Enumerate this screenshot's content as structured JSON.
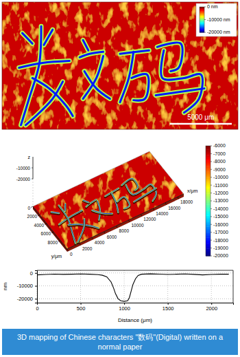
{
  "chart_data": [
    {
      "type": "heatmap",
      "xlim": [
        0,
        19000
      ],
      "ylim": [
        0,
        10000
      ],
      "tick_labels": false,
      "background": -1500,
      "stroke_edge": -9000,
      "stroke_center": -17000,
      "strokes": [
        {
          "x": [
            1630,
            2440
          ],
          "y": [
            2440,
            3260
          ]
        },
        {
          "x": [
            4070,
            3370
          ],
          "y": [
            2170,
            3370
          ]
        },
        {
          "x": [
            1360,
            3260,
            5430
          ],
          "y": [
            5160,
            4780,
            4620
          ]
        },
        {
          "x": [
            3150,
            2990,
            2170,
            1520
          ],
          "y": [
            1900,
            4890,
            7600,
            9670
          ]
        },
        {
          "x": [
            2440,
            3800,
            5160,
            5700
          ],
          "y": [
            5970,
            6790,
            8150,
            8960
          ]
        },
        {
          "x": [
            4890,
            4070,
            2720,
            1900
          ],
          "y": [
            6250,
            7600,
            8960,
            9670
          ]
        },
        {
          "x": [
            6250,
            7060,
            8150
          ],
          "y": [
            4340,
            4070,
            3910
          ]
        },
        {
          "x": [
            6520,
            6950
          ],
          "y": [
            2990,
            3800
          ]
        },
        {
          "x": [
            8150,
            7600,
            6520
          ],
          "y": [
            4240,
            5970,
            7600
          ]
        },
        {
          "x": [
            6630,
            7600,
            8690
          ],
          "y": [
            5430,
            6790,
            7600
          ]
        },
        {
          "x": [
            9500,
            10860,
            11840
          ],
          "y": [
            4070,
            3910,
            3800
          ]
        },
        {
          "x": [
            10590,
            10210,
            9500
          ],
          "y": [
            3910,
            5970,
            7870
          ]
        },
        {
          "x": [
            10430,
            11680,
            11510,
            10590
          ],
          "y": [
            5970,
            5700,
            7600,
            7710
          ]
        },
        {
          "x": [
            12490,
            14390,
            14230,
            13580
          ],
          "y": [
            3530,
            3260,
            5160,
            5430
          ]
        },
        {
          "x": [
            13030,
            12920,
            14660,
            16020,
            15860,
            14660
          ],
          "y": [
            3800,
            5970,
            5970,
            5700,
            7600,
            8690
          ]
        },
        {
          "x": [
            12380,
            16290
          ],
          "y": [
            7330,
            6790
          ]
        }
      ],
      "colorbar": {
        "range": [
          -20000,
          0
        ],
        "ticks": [
          {
            "value": 0,
            "label": "0 nm"
          },
          {
            "value": -10000,
            "label": "-10000 nm"
          },
          {
            "value": -20000,
            "label": "-20000 nm"
          }
        ]
      },
      "scale_bar": {
        "value": 5000,
        "label": "5000 μm"
      }
    },
    {
      "type": "surface3d",
      "x_label": "x/μm",
      "y_label": "y/μm",
      "z_label": "z",
      "xlim": [
        0,
        19000
      ],
      "ylim": [
        0,
        10000
      ],
      "zlim": [
        -20000,
        0
      ],
      "xticks": [
        0,
        2000,
        4000,
        6000,
        8000,
        10000,
        12000,
        14000,
        16000,
        18000
      ],
      "yticks": [
        0,
        2000,
        4000,
        6000,
        8000
      ],
      "zticks": [
        -20000,
        -10000
      ],
      "colorbar": {
        "range": [
          -20000,
          -6000
        ],
        "ticks": [
          -6000,
          -7000,
          -8000,
          -9000,
          -10000,
          -11000,
          -12000,
          -13000,
          -14000,
          -15000,
          -16000,
          -17000,
          -18000,
          -19000,
          -20000
        ]
      }
    },
    {
      "type": "line",
      "x_label": "Distance (μm)",
      "y_label": "nm",
      "grid": true,
      "color": "#000000",
      "x": [
        0,
        100,
        200,
        300,
        400,
        500,
        600,
        700,
        750,
        800,
        850,
        880,
        900,
        930,
        960,
        1000,
        1040,
        1060,
        1080,
        1100,
        1130,
        1160,
        1200,
        1300,
        1400,
        1500,
        1600,
        1700,
        1800,
        1900,
        2000,
        2100,
        2200
      ],
      "values": [
        -1500,
        -1200,
        -900,
        -1100,
        -1000,
        -800,
        -1000,
        -1300,
        -1800,
        -3000,
        -7000,
        -12000,
        -16000,
        -20000,
        -21500,
        -22000,
        -21500,
        -19000,
        -14000,
        -9000,
        -4500,
        -2000,
        -1000,
        -700,
        -900,
        -1200,
        -1000,
        -800,
        -1100,
        -1500,
        -1200,
        -1000,
        -1000
      ],
      "xlim": [
        0,
        2250
      ],
      "ylim": [
        -23000,
        2000
      ],
      "xticks": [
        0,
        500,
        1000,
        1500,
        2000
      ],
      "yticks": [
        -20000,
        -10000,
        0
      ]
    }
  ],
  "caption": "3D mapping of Chinese characters \"数码\"(Digital) written on a normal paper"
}
